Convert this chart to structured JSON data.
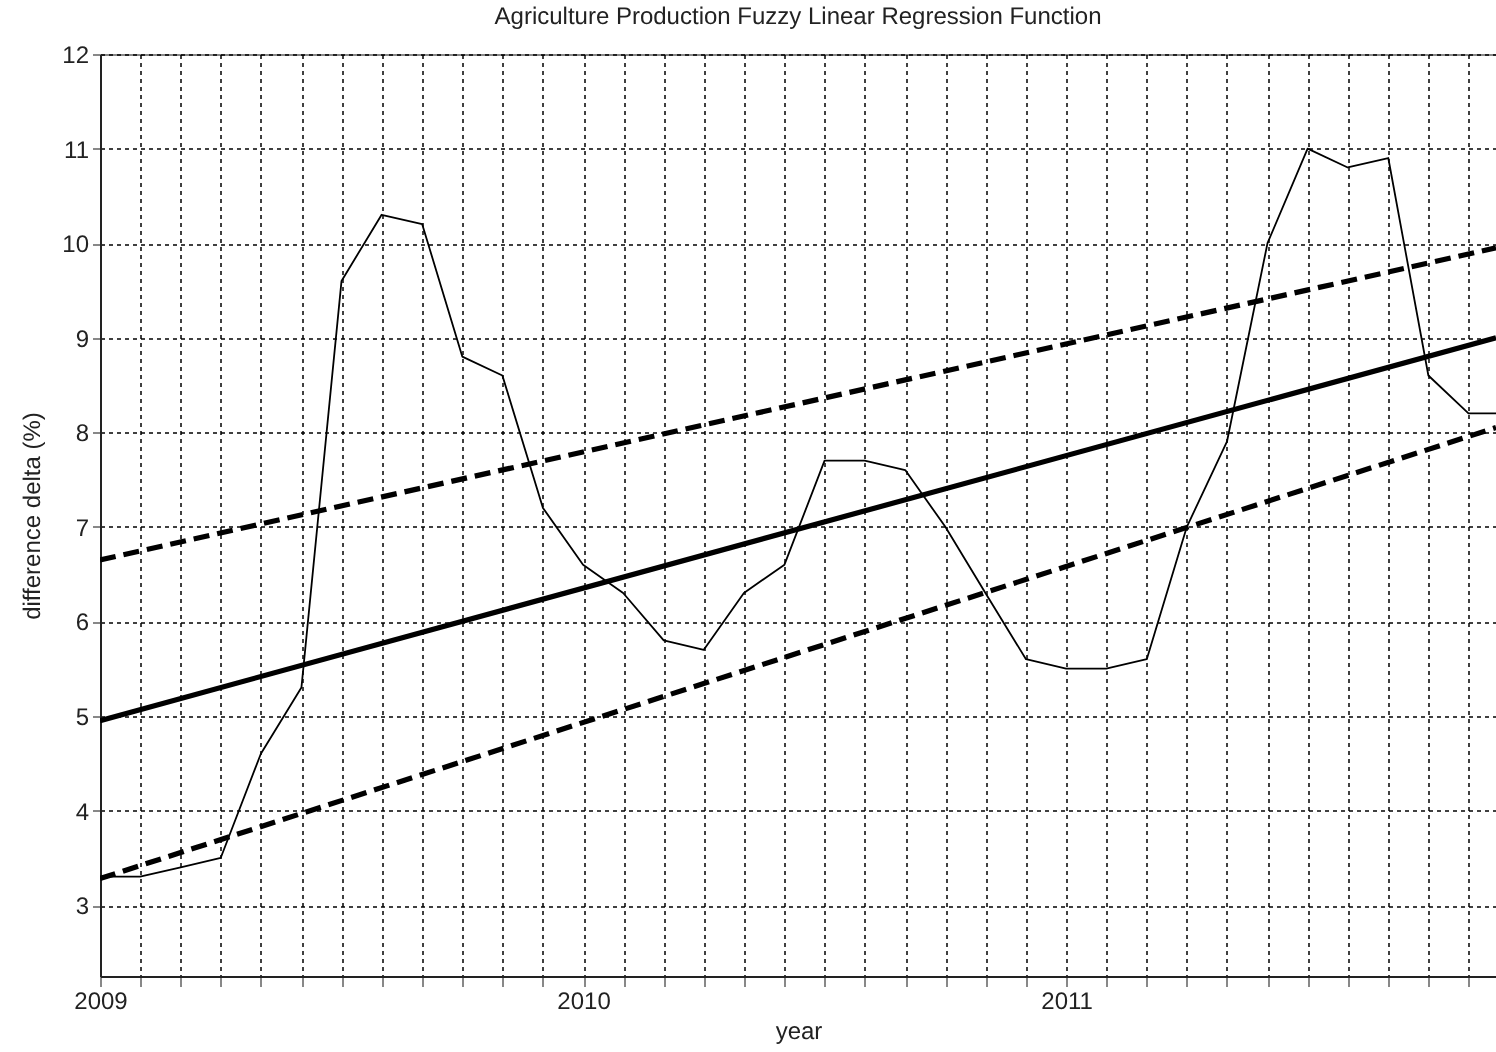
{
  "chart_data": {
    "type": "line",
    "title": "Agriculture Production Fuzzy Linear Regression Function",
    "xlabel": "year",
    "ylabel": "difference delta (%)",
    "xlim": [
      2009,
      2011.89
    ],
    "ylim": [
      2.25,
      12
    ],
    "xticks": [
      2009,
      {
        "value": 2009.083,
        "label": null
      },
      {
        "value": 2009.167,
        "label": null
      },
      {
        "value": 2009.25,
        "label": null
      },
      {
        "value": 2009.333,
        "label": null
      },
      {
        "value": 2009.417,
        "label": null
      },
      {
        "value": 2009.5,
        "label": null
      },
      {
        "value": 2009.583,
        "label": null
      },
      {
        "value": 2009.667,
        "label": null
      },
      {
        "value": 2009.75,
        "label": null
      },
      {
        "value": 2009.833,
        "label": null
      },
      {
        "value": 2009.917,
        "label": null
      },
      2010,
      {
        "value": 2010.083,
        "label": null
      },
      {
        "value": 2010.167,
        "label": null
      },
      {
        "value": 2010.25,
        "label": null
      },
      {
        "value": 2010.333,
        "label": null
      },
      {
        "value": 2010.417,
        "label": null
      },
      {
        "value": 2010.5,
        "label": null
      },
      {
        "value": 2010.583,
        "label": null
      },
      {
        "value": 2010.667,
        "label": null
      },
      {
        "value": 2010.75,
        "label": null
      },
      {
        "value": 2010.833,
        "label": null
      },
      {
        "value": 2010.917,
        "label": null
      },
      2011,
      {
        "value": 2011.083,
        "label": null
      },
      {
        "value": 2011.167,
        "label": null
      },
      {
        "value": 2011.25,
        "label": null
      },
      {
        "value": 2011.333,
        "label": null
      },
      {
        "value": 2011.417,
        "label": null
      },
      {
        "value": 2011.5,
        "label": null
      },
      {
        "value": 2011.583,
        "label": null
      },
      {
        "value": 2011.667,
        "label": null
      },
      {
        "value": 2011.75,
        "label": null
      },
      {
        "value": 2011.833,
        "label": null
      }
    ],
    "yticks": [
      3,
      4,
      5,
      6,
      7,
      8,
      9,
      10,
      11,
      12
    ],
    "grid": true,
    "marker": "none",
    "series": [
      {
        "color": "#000000",
        "line_style": "solid",
        "x": [
          2009,
          2009.083,
          2009.167,
          2009.25,
          2009.333,
          2009.417,
          2009.5,
          2009.583,
          2009.667,
          2009.75,
          2009.833,
          2009.917,
          2010,
          2010.083,
          2010.167,
          2010.25,
          2010.333,
          2010.417,
          2010.5,
          2010.583,
          2010.667,
          2010.75,
          2010.833,
          2010.917,
          2011,
          2011.083,
          2011.167,
          2011.25,
          2011.333,
          2011.417,
          2011.5,
          2011.583,
          2011.667,
          2011.75,
          2011.833,
          2011.89
        ],
        "values": [
          3.3,
          3.3,
          3.4,
          3.5,
          4.6,
          5.3,
          9.6,
          10.3,
          10.2,
          8.8,
          8.6,
          7.2,
          6.6,
          6.3,
          5.8,
          5.7,
          6.3,
          6.6,
          7.7,
          7.7,
          7.6,
          7.0,
          6.3,
          5.6,
          5.5,
          5.5,
          5.6,
          7.0,
          7.9,
          10.0,
          11.0,
          10.8,
          10.9,
          8.6,
          8.2,
          8.2
        ]
      },
      {
        "color": "#000000",
        "line_style": "solid",
        "x": [
          2009,
          2011.89
        ],
        "values": [
          4.95,
          9.0
        ]
      },
      {
        "color": "#000000",
        "line_style": "dashed",
        "x": [
          2009,
          2011.89
        ],
        "values": [
          6.65,
          9.95
        ]
      },
      {
        "color": "#000000",
        "line_style": "dashed",
        "x": [
          2009,
          2011.89
        ],
        "values": [
          3.28,
          8.05
        ]
      }
    ]
  }
}
